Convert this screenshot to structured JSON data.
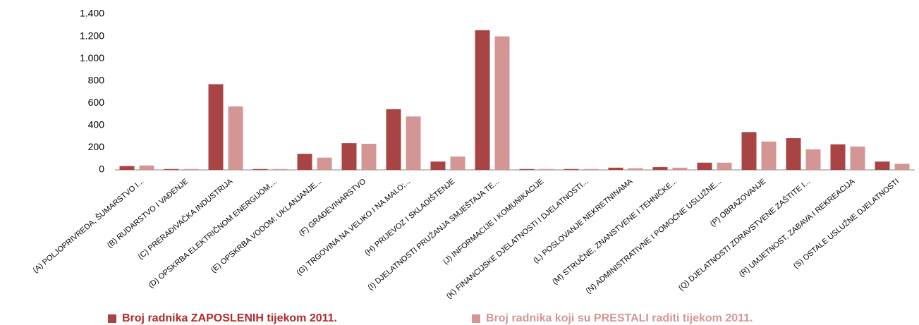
{
  "chart_data": {
    "type": "bar",
    "categories": [
      "(A) POLJOPRIVREDA, ŠUMARSTVO I...",
      "(B) RUDARSTVO I VAĐENJE",
      "(C) PRERAĐIVAČKA INDUSTRIJA",
      "(D) OPSKRBA ELEKTRIČNOM ENERGIJOM,...",
      "(E) OPSKRBA VODOM; UKLANJANJE...",
      "(F) GRAĐEVINARSTVO",
      "(G) TRGOVINA NA VELIKO I NA MALO;...",
      "(H) PRIJEVOZ I SKLADIŠTENJE",
      "(I) DJELATNOSTI PRUŽANJA SMJEŠTAJA TE...",
      "(J) INFORMACIJE I KOMUNIKACIJE",
      "(K) FINANCIJSKE DJELATNOSTI I DJELATNOSTI...",
      "(L) POSLOVANJE NEKRETNINAMA",
      "(M) STRUČNE, ZNANSTVENE I TEHNIČKE...",
      "(N) ADMINISTRATIVNE I POMOĆNE USLUŽNE...",
      "(P) OBRAZOVANJE",
      "(Q) DJELATNOSTI ZDRAVSTVENE ZAŠTITE I...",
      "(R) UMJETNOST, ZABAVA I REKREACIJA",
      "(S) OSTALE USLUŽNE DJELATNOSTI"
    ],
    "series": [
      {
        "name": "Broj radnika ZAPOSLENIH tijekom 2011.",
        "color": "#a94444",
        "values": [
          35,
          8,
          770,
          8,
          145,
          240,
          545,
          75,
          1255,
          8,
          8,
          20,
          25,
          65,
          340,
          285,
          230,
          75
        ]
      },
      {
        "name": "Broj radnika koji su PRESTALI raditi tijekom 2011.",
        "color": "#d49595",
        "values": [
          40,
          8,
          570,
          8,
          110,
          235,
          480,
          120,
          1200,
          8,
          8,
          15,
          20,
          65,
          255,
          185,
          210,
          55
        ]
      }
    ],
    "ylim": [
      0,
      1400
    ],
    "yticks": [
      0,
      200,
      400,
      600,
      800,
      {
        "value": 1000,
        "label": "1.000"
      },
      {
        "value": 1200,
        "label": "1.200"
      },
      {
        "value": 1400,
        "label": "1.400"
      }
    ],
    "grid": false,
    "legend": "bottom"
  }
}
